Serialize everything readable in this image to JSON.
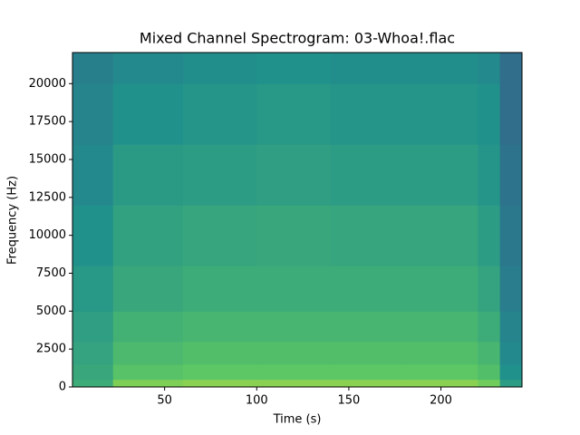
{
  "chart_data": {
    "type": "heatmap",
    "title": "Mixed Channel Spectrogram: 03-Whoa!.flac",
    "xlabel": "Time (s)",
    "ylabel": "Frequency (Hz)",
    "xlim": [
      0,
      244
    ],
    "ylim": [
      0,
      22050
    ],
    "xticks": [
      50,
      100,
      150,
      200
    ],
    "yticks": [
      0,
      2500,
      5000,
      7500,
      10000,
      12500,
      15000,
      17500,
      20000
    ],
    "xbins": [
      0,
      22,
      60,
      100,
      140,
      180,
      220,
      232,
      244
    ],
    "ybins": [
      0,
      500,
      1500,
      3000,
      5000,
      8000,
      12000,
      16000,
      20000,
      22050
    ],
    "colormap": "viridis",
    "clim": [
      0,
      1
    ],
    "values": [
      [
        0.62,
        0.8,
        0.82,
        0.82,
        0.82,
        0.82,
        0.78,
        0.55
      ],
      [
        0.6,
        0.72,
        0.74,
        0.74,
        0.74,
        0.74,
        0.7,
        0.5
      ],
      [
        0.58,
        0.68,
        0.7,
        0.7,
        0.7,
        0.7,
        0.66,
        0.47
      ],
      [
        0.56,
        0.64,
        0.66,
        0.66,
        0.66,
        0.66,
        0.62,
        0.45
      ],
      [
        0.53,
        0.6,
        0.62,
        0.62,
        0.62,
        0.62,
        0.58,
        0.42
      ],
      [
        0.5,
        0.57,
        0.59,
        0.6,
        0.59,
        0.59,
        0.55,
        0.4
      ],
      [
        0.47,
        0.54,
        0.55,
        0.56,
        0.55,
        0.55,
        0.52,
        0.38
      ],
      [
        0.45,
        0.5,
        0.52,
        0.53,
        0.52,
        0.52,
        0.5,
        0.36
      ],
      [
        0.43,
        0.47,
        0.49,
        0.5,
        0.49,
        0.49,
        0.47,
        0.36
      ]
    ]
  }
}
